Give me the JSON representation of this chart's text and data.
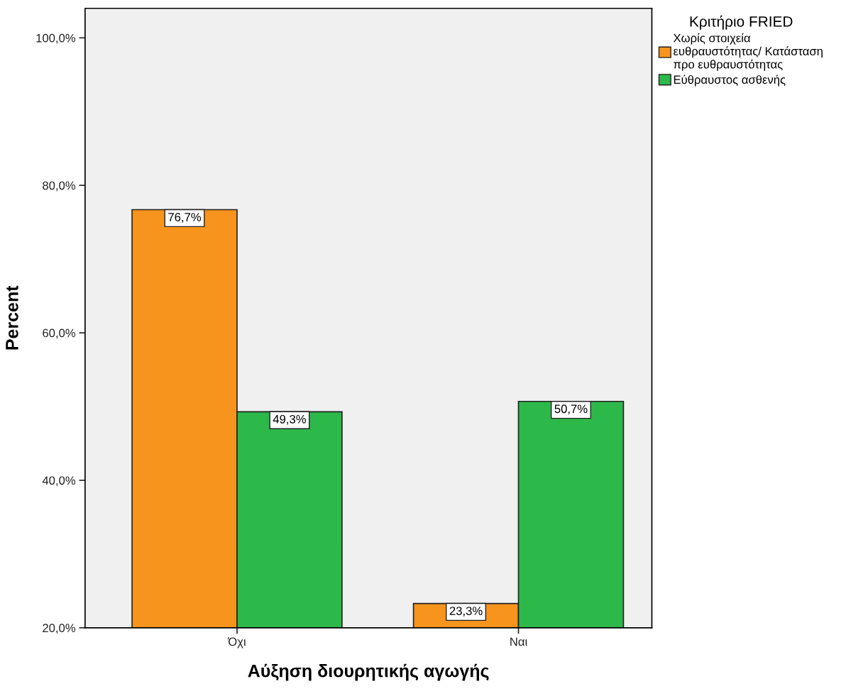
{
  "chart_data": {
    "type": "bar",
    "xlabel": "Αύξηση διουρητικής αγωγής",
    "ylabel": "Percent",
    "legend_title": "Κριτήριο FRIED",
    "categories": [
      "Όχι",
      "Ναι"
    ],
    "series": [
      {
        "name": "Χωρίς στοιχεία\nευθραυστότητας/ Κατάσταση\nπρο ευθραυστότητας",
        "color": "#f7941d",
        "values": [
          76.7,
          23.3
        ],
        "value_labels": [
          "76,7%",
          "23,3%"
        ]
      },
      {
        "name": "Εύθραυστος ασθενής",
        "color": "#2db84a",
        "values": [
          49.3,
          50.7
        ],
        "value_labels": [
          "49,3%",
          "50,7%"
        ]
      }
    ],
    "ylim": [
      20,
      104
    ],
    "yticks": [
      {
        "value": 20,
        "label": "20,0%"
      },
      {
        "value": 40,
        "label": "40,0%"
      },
      {
        "value": 60,
        "label": "60,0%"
      },
      {
        "value": 80,
        "label": "80,0%"
      },
      {
        "value": 100,
        "label": "100,0%"
      }
    ],
    "grid": false,
    "legend": "top right"
  }
}
